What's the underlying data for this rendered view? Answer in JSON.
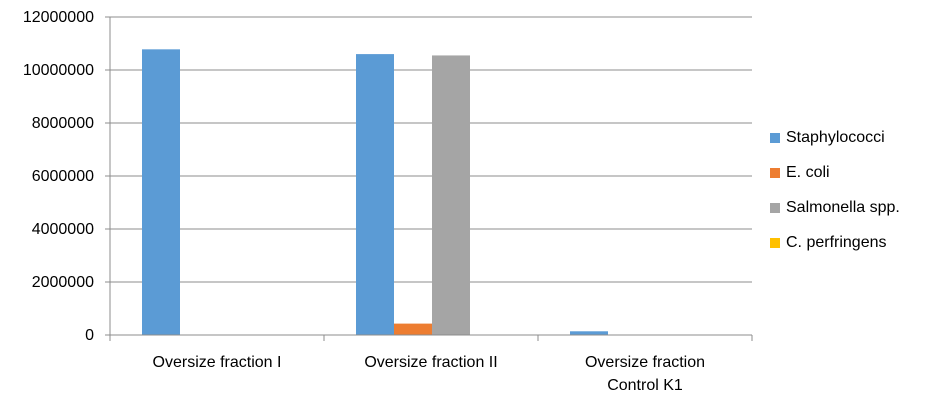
{
  "chart_data": {
    "type": "bar",
    "title": "",
    "xlabel": "",
    "ylabel": "",
    "ylim": [
      0,
      12000000
    ],
    "yticks": [
      "0",
      "2000000",
      "4000000",
      "6000000",
      "8000000",
      "10000000",
      "12000000"
    ],
    "grid": true,
    "legend_position": "right",
    "categories": [
      [
        "Oversize fraction I"
      ],
      [
        "Oversize fraction II"
      ],
      [
        "Oversize fraction",
        "Control K1"
      ]
    ],
    "series": [
      {
        "name": "Staphylococci",
        "color": "#5b9bd5",
        "values": [
          10780000,
          10600000,
          140000
        ]
      },
      {
        "name": "E. coli",
        "color": "#ed7d31",
        "values": [
          0,
          430000,
          0
        ]
      },
      {
        "name": "Salmonella spp.",
        "color": "#a5a5a5",
        "values": [
          0,
          10550000,
          0
        ]
      },
      {
        "name": "C. perfringens",
        "color": "#ffc000",
        "values": [
          0,
          0,
          0
        ]
      }
    ]
  }
}
